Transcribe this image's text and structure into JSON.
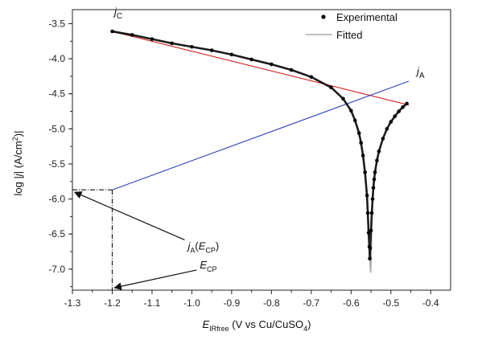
{
  "chart_data": {
    "type": "scatter",
    "xlabel": {
      "main": "E",
      "sub": "IRfree",
      "rest_a": " (V vs Cu/CuSO",
      "rest_sub": "4",
      "rest_b": ")"
    },
    "ylabel": {
      "a": "log |",
      "j": "j",
      "b": "| (A/cm",
      "sup": "2",
      "c": ")|"
    },
    "xlim": [
      -1.3,
      -0.35
    ],
    "ylim": [
      -7.3,
      -3.3
    ],
    "xticks": [
      "-1.3",
      "-1.2",
      "-1.1",
      "-1.0",
      "-0.9",
      "-0.8",
      "-0.7",
      "-0.6",
      "-0.5",
      "-0.4"
    ],
    "xtick_values": [
      -1.3,
      -1.2,
      -1.1,
      -1.0,
      -0.9,
      -0.8,
      -0.7,
      -0.6,
      -0.5,
      -0.4
    ],
    "yticks": [
      "-3.5",
      "-4.0",
      "-4.5",
      "-5.0",
      "-5.5",
      "-6.0",
      "-6.5",
      "-7.0"
    ],
    "ytick_values": [
      -3.5,
      -4.0,
      -4.5,
      -5.0,
      -5.5,
      -6.0,
      -6.5,
      -7.0
    ],
    "legend_position": "top-right",
    "series": [
      {
        "name": "Experimental",
        "style": "points",
        "color": "#000000",
        "x": [
          -1.2,
          -1.15,
          -1.1,
          -1.05,
          -1.0,
          -0.95,
          -0.9,
          -0.85,
          -0.8,
          -0.75,
          -0.7,
          -0.65,
          -0.62,
          -0.6,
          -0.59,
          -0.58,
          -0.575,
          -0.57,
          -0.565,
          -0.56,
          -0.558,
          -0.556,
          -0.554,
          -0.553,
          -0.552,
          -0.55,
          -0.548,
          -0.546,
          -0.544,
          -0.542,
          -0.54,
          -0.535,
          -0.53,
          -0.52,
          -0.51,
          -0.5,
          -0.49,
          -0.48,
          -0.47,
          -0.46
        ],
        "y": [
          -3.61,
          -3.66,
          -3.72,
          -3.78,
          -3.83,
          -3.88,
          -3.94,
          -4.01,
          -4.08,
          -4.16,
          -4.26,
          -4.41,
          -4.57,
          -4.74,
          -4.88,
          -5.06,
          -5.2,
          -5.38,
          -5.62,
          -5.95,
          -6.2,
          -6.48,
          -6.68,
          -6.85,
          -6.7,
          -6.45,
          -6.2,
          -6.0,
          -5.84,
          -5.72,
          -5.62,
          -5.45,
          -5.32,
          -5.14,
          -5.0,
          -4.9,
          -4.82,
          -4.75,
          -4.69,
          -4.64
        ]
      },
      {
        "name": "Fitted",
        "style": "line",
        "color": "#aaaaaa",
        "x": [
          -1.2,
          -1.15,
          -1.1,
          -1.05,
          -1.0,
          -0.95,
          -0.9,
          -0.85,
          -0.8,
          -0.75,
          -0.7,
          -0.65,
          -0.62,
          -0.6,
          -0.59,
          -0.58,
          -0.575,
          -0.57,
          -0.565,
          -0.56,
          -0.557,
          -0.554,
          -0.552,
          -0.551,
          -0.55,
          -0.548,
          -0.545,
          -0.542,
          -0.54,
          -0.535,
          -0.53,
          -0.52,
          -0.51,
          -0.5,
          -0.49,
          -0.48,
          -0.47,
          -0.46
        ],
        "y": [
          -3.61,
          -3.66,
          -3.72,
          -3.78,
          -3.83,
          -3.88,
          -3.94,
          -4.01,
          -4.08,
          -4.16,
          -4.26,
          -4.41,
          -4.57,
          -4.74,
          -4.88,
          -5.06,
          -5.2,
          -5.38,
          -5.62,
          -5.95,
          -6.3,
          -6.7,
          -6.95,
          -7.05,
          -6.9,
          -6.4,
          -6.0,
          -5.75,
          -5.62,
          -5.45,
          -5.32,
          -5.14,
          -5.0,
          -4.9,
          -4.82,
          -4.75,
          -4.69,
          -4.64
        ]
      },
      {
        "name": "jC",
        "style": "line",
        "color": "#d42020",
        "x": [
          -1.2,
          -0.455
        ],
        "y": [
          -3.61,
          -4.66
        ]
      },
      {
        "name": "jA",
        "style": "line",
        "color": "#2b3fbf",
        "x": [
          -1.2,
          -0.455
        ],
        "y": [
          -5.87,
          -4.32
        ]
      }
    ],
    "annotations": {
      "jc": {
        "j": "j",
        "sub": "C",
        "color": "#d42020",
        "x": -1.195,
        "y": -3.38
      },
      "ja": {
        "j": "j",
        "sub": "A",
        "color": "#2b3fbf",
        "x": -0.435,
        "y": -4.23
      },
      "ja_ecp": {
        "j": "j",
        "sub1": "A",
        "open": "(",
        "E": "E",
        "sub2": "CP",
        "close": ")",
        "x": -1.01,
        "y": -6.72
      },
      "ecp": {
        "E": "E",
        "sub": "CP",
        "x": -0.98,
        "y": -6.99
      }
    },
    "guides": {
      "corr_potential": -1.2,
      "corr_logj": -5.87
    }
  },
  "legend": {
    "experimental": "Experimental",
    "fitted": "Fitted"
  }
}
